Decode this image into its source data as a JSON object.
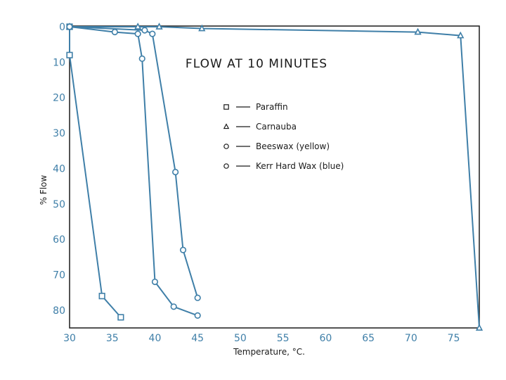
{
  "chart_data": {
    "type": "line",
    "title": "FLOW AT 10 MINUTES",
    "xlabel": "Temperature, °C.",
    "ylabel": "% Flow",
    "xlim": [
      30,
      78
    ],
    "ylim": [
      0,
      85
    ],
    "y_inverted": true,
    "xticks": [
      30,
      35,
      40,
      45,
      50,
      55,
      60,
      65,
      70,
      75
    ],
    "yticks": [
      0,
      10,
      20,
      30,
      40,
      50,
      60,
      70,
      80
    ],
    "grid": false,
    "legend_position": "upper-middle",
    "line_color": "#3f7fa8",
    "series": [
      {
        "name": "Paraffin",
        "marker": "square",
        "x": [
          30,
          30,
          33.8,
          36
        ],
        "y": [
          0,
          8,
          76,
          82
        ]
      },
      {
        "name": "Carnauba",
        "marker": "triangle",
        "x": [
          30,
          38,
          40.5,
          45.5,
          70.8,
          75.8,
          78
        ],
        "y": [
          0,
          0,
          0,
          0.5,
          1.5,
          2.5,
          85
        ]
      },
      {
        "name": "Beeswax (yellow)",
        "marker": "circle",
        "x": [
          30,
          35.3,
          38,
          38.5,
          40,
          42.2,
          45
        ],
        "y": [
          0,
          1.5,
          2,
          9,
          72,
          79,
          81.5
        ]
      },
      {
        "name": "Kerr Hard Wax (blue)",
        "marker": "circle",
        "x": [
          30,
          38.8,
          39.7,
          42.4,
          43.3,
          45
        ],
        "y": [
          0,
          1,
          2,
          41,
          63,
          76.5
        ]
      }
    ]
  }
}
